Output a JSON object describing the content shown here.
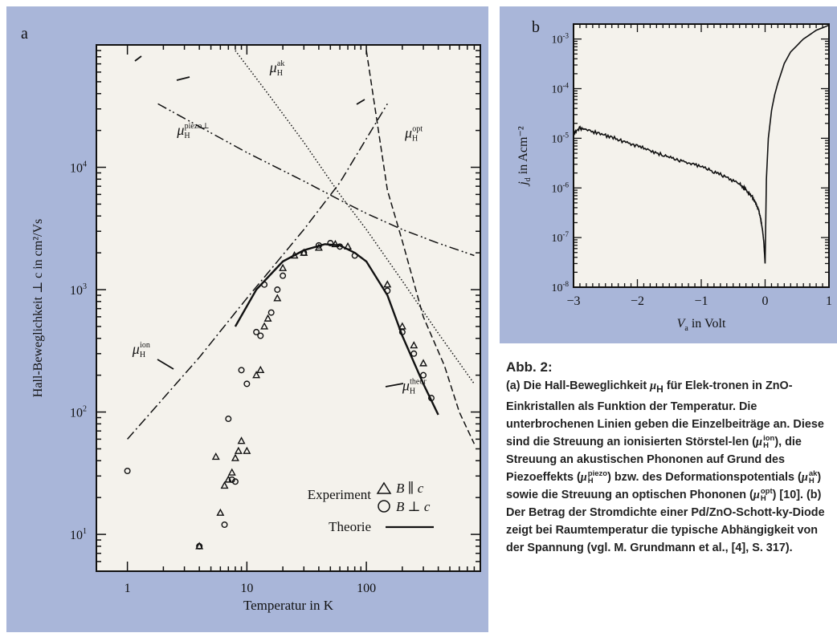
{
  "chart_data": [
    {
      "panel_letter": "a",
      "type": "scatter",
      "xscale": "log",
      "yscale": "log",
      "xlabel": "Temperatur in K",
      "ylabel": "Hall-Beweglichkeit ⊥ c in cm²/Vs",
      "xlim": [
        0.55,
        900
      ],
      "ylim": [
        5,
        100000
      ],
      "x_ticks": [
        {
          "value": 1,
          "label": "1"
        },
        {
          "value": 10,
          "label": "10"
        },
        {
          "value": 100,
          "label": "100"
        }
      ],
      "y_ticks": [
        {
          "value": 10,
          "base": "10",
          "exp": "1"
        },
        {
          "value": 100,
          "base": "10",
          "exp": "2"
        },
        {
          "value": 1000,
          "base": "10",
          "exp": "3"
        },
        {
          "value": 10000,
          "base": "10",
          "exp": "4"
        }
      ],
      "curve_labels": [
        {
          "sup": "ak",
          "x": 15.5,
          "y": 60000
        },
        {
          "sup": "piezo⊥",
          "x": 2.6,
          "y": 18500
        },
        {
          "sup": "opt",
          "x": 210,
          "y": 17500
        },
        {
          "sup": "ion",
          "x": 1.1,
          "y": 300
        },
        {
          "sup": "theor",
          "x": 200,
          "y": 150
        }
      ],
      "series": [
        {
          "name": "ion",
          "style": "dashdot",
          "x": [
            1,
            4,
            10,
            30,
            60,
            150
          ],
          "y": [
            60,
            280,
            850,
            3100,
            7500,
            33000
          ]
        },
        {
          "name": "piezo",
          "style": "dashdotdot",
          "x": [
            1.8,
            4,
            10,
            30,
            60,
            100,
            200,
            400,
            800
          ],
          "y": [
            33000,
            21500,
            13200,
            7700,
            5400,
            4200,
            3100,
            2400,
            1900
          ]
        },
        {
          "name": "ak",
          "style": "dotted",
          "x": [
            8,
            15,
            30,
            60,
            100,
            200,
            400,
            800
          ],
          "y": [
            90000,
            40000,
            16000,
            6000,
            3100,
            1180,
            440,
            170
          ]
        },
        {
          "name": "opt",
          "style": "dashed",
          "x": [
            100,
            150,
            200,
            300,
            450,
            600,
            800
          ],
          "y": [
            90000,
            6500,
            2500,
            600,
            240,
            100,
            55
          ]
        },
        {
          "name": "theor",
          "style": "solid",
          "x": [
            8,
            12,
            20,
            30,
            45,
            60,
            80,
            100,
            150,
            200,
            300,
            400
          ],
          "y": [
            500,
            1000,
            1700,
            2100,
            2350,
            2300,
            2000,
            1700,
            900,
            420,
            170,
            95
          ]
        }
      ],
      "points_parallel": {
        "marker": "triangle",
        "x": [
          4,
          5.5,
          6,
          6.5,
          7,
          7.5,
          8,
          8.5,
          9,
          10,
          12,
          13,
          14,
          15,
          18,
          20,
          25,
          30,
          40,
          55,
          70,
          150,
          200,
          250,
          300
        ],
        "y": [
          8,
          43,
          15,
          25,
          28,
          32,
          42,
          48,
          58,
          48,
          200,
          220,
          500,
          580,
          850,
          1500,
          1900,
          2000,
          2200,
          2350,
          2250,
          1100,
          500,
          350,
          250
        ]
      },
      "points_perp": {
        "marker": "circle",
        "x": [
          1,
          4,
          6.5,
          7,
          7.5,
          8,
          9,
          10,
          12,
          13,
          14,
          16,
          18,
          20,
          30,
          40,
          50,
          60,
          80,
          150,
          200,
          250,
          300,
          350
        ],
        "y": [
          33,
          8,
          12,
          88,
          28,
          27,
          220,
          170,
          450,
          420,
          1100,
          650,
          1000,
          1300,
          2000,
          2300,
          2400,
          2250,
          1900,
          980,
          450,
          300,
          200,
          130
        ]
      },
      "legend": {
        "experiment": "Experiment",
        "parallel": "B ∥ c",
        "perp": "B ⊥ c",
        "theory": "Theorie"
      }
    },
    {
      "panel_letter": "b",
      "type": "line",
      "yscale": "log",
      "xlabel": "in Volt",
      "xlabel_var": "V",
      "xlabel_sub": "a",
      "ylabel_var": "j",
      "ylabel_sub": "d",
      "ylabel_rest": " in Acm⁻²",
      "xlim": [
        -3,
        1
      ],
      "ylim": [
        1e-08,
        0.002
      ],
      "x_ticks": [
        {
          "value": -3,
          "label": "−3"
        },
        {
          "value": -2,
          "label": "−2"
        },
        {
          "value": -1,
          "label": "−1"
        },
        {
          "value": 0,
          "label": "0"
        },
        {
          "value": 1,
          "label": "1"
        }
      ],
      "y_ticks": [
        {
          "value": 1e-08,
          "exp": "-8"
        },
        {
          "value": 1e-07,
          "exp": "-7"
        },
        {
          "value": 1e-06,
          "exp": "-6"
        },
        {
          "value": 1e-05,
          "exp": "-5"
        },
        {
          "value": 0.0001,
          "exp": "-4"
        },
        {
          "value": 0.001,
          "exp": "-3"
        }
      ],
      "series": [
        {
          "x": [
            -3,
            -2.9,
            -2.8,
            -2.6,
            -2.4,
            -2.2,
            -2,
            -1.8,
            -1.6,
            -1.4,
            -1.2,
            -1,
            -0.8,
            -0.6,
            -0.4,
            -0.3,
            -0.2,
            -0.15,
            -0.1,
            -0.07,
            -0.04,
            -0.02,
            0,
            0.02,
            0.05,
            0.1,
            0.15,
            0.2,
            0.3,
            0.4,
            0.6,
            0.8,
            1
          ],
          "y": [
            1.3e-05,
            1.6e-05,
            1.5e-05,
            1.25e-05,
            1.05e-05,
            8.5e-06,
            7e-06,
            5.6e-06,
            4.6e-06,
            3.8e-06,
            3.2e-06,
            2.7e-06,
            2.1e-06,
            1.65e-06,
            1.2e-06,
            9e-07,
            6.5e-07,
            5e-07,
            3.5e-07,
            2.4e-07,
            1.4e-07,
            8e-08,
            3e-08,
            1.5e-06,
            1e-05,
            3.6e-05,
            7.5e-05,
            0.00013,
            0.00032,
            0.00055,
            0.001,
            0.0015,
            0.0019
          ]
        }
      ]
    }
  ],
  "caption": {
    "title": "Abb. 2:",
    "mu": "μ",
    "H": "H",
    "p1": "(a) Die Hall-Beweglichkeit ",
    "p2": " für Elek-tronen in ZnO-Einkristallen als Funktion der Temperatur. Die unterbrochenen Linien geben die Einzelbeiträge an. Diese sind die Streuung an ionisierten Störstel-len (",
    "ion": "ion",
    "p3": "), die Streuung an akustischen Phononen auf Grund des Piezoeffekts (",
    "piezo": "piezo",
    "p4": ") bzw. des Deformationspotentials (",
    "ak": "ak",
    "p5": ") sowie die Streuung an optischen Phononen (",
    "opt": "opt",
    "p6": ") [10]. (b) Der Betrag der Stromdichte einer Pd/ZnO-Schott-ky-Diode zeigt bei Raumtemperatur die typische Abhängigkeit von der Spannung (vgl. M. Grundmann et al., [4], S. 317)."
  }
}
